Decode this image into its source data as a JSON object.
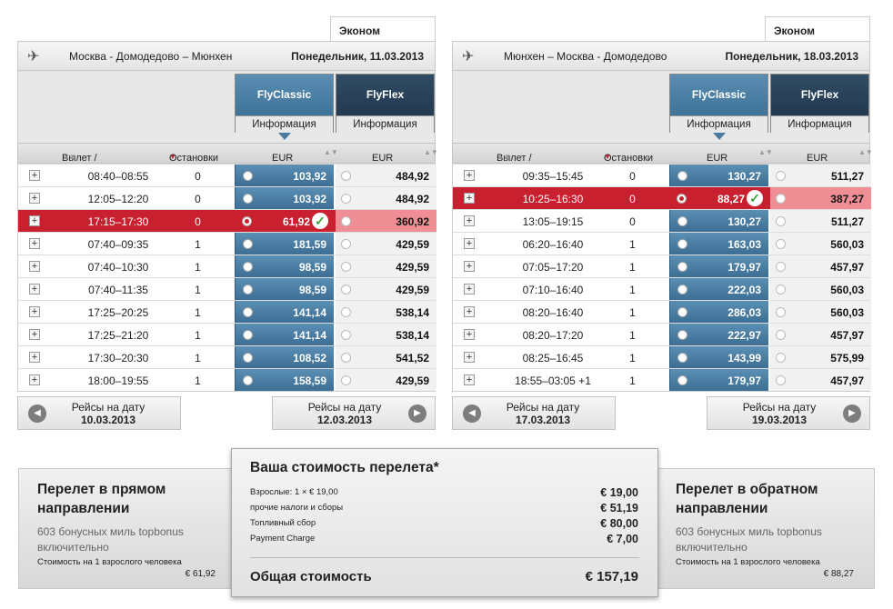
{
  "outbound": {
    "tab": "Эконом",
    "route": "Москва - Домодедово – Мюнхен",
    "date": "Понедельник, 11.03.2013",
    "fare_classic": "FlyClassic",
    "fare_flex": "FlyFlex",
    "info": "Информация",
    "col_time": "Вылет / прибытие",
    "col_stops": "Остановки",
    "col_eur": "EUR",
    "flights": [
      {
        "time": "08:40–08:55",
        "stops": "0",
        "classic": "103,92",
        "flex": "484,92"
      },
      {
        "time": "12:05–12:20",
        "stops": "0",
        "classic": "103,92",
        "flex": "484,92"
      },
      {
        "time": "17:15–17:30",
        "stops": "0",
        "classic": "61,92",
        "flex": "360,92",
        "selected": true
      },
      {
        "time": "07:40–09:35",
        "stops": "1",
        "classic": "181,59",
        "flex": "429,59"
      },
      {
        "time": "07:40–10:30",
        "stops": "1",
        "classic": "98,59",
        "flex": "429,59"
      },
      {
        "time": "07:40–11:35",
        "stops": "1",
        "classic": "98,59",
        "flex": "429,59"
      },
      {
        "time": "17:25–20:25",
        "stops": "1",
        "classic": "141,14",
        "flex": "538,14"
      },
      {
        "time": "17:25–21:20",
        "stops": "1",
        "classic": "141,14",
        "flex": "538,14"
      },
      {
        "time": "17:30–20:30",
        "stops": "1",
        "classic": "108,52",
        "flex": "541,52"
      },
      {
        "time": "18:00–19:55",
        "stops": "1",
        "classic": "158,59",
        "flex": "429,59"
      }
    ],
    "prev_label": "Рейсы на дату",
    "prev_date": "10.03.2013",
    "next_label": "Рейсы на дату",
    "next_date": "12.03.2013"
  },
  "return": {
    "tab": "Эконом",
    "route": "Мюнхен – Москва - Домодедово",
    "date": "Понедельник, 18.03.2013",
    "fare_classic": "FlyClassic",
    "fare_flex": "FlyFlex",
    "info": "Информация",
    "col_time": "Вылет / прибытие",
    "col_stops": "Остановки",
    "col_eur": "EUR",
    "flights": [
      {
        "time": "09:35–15:45",
        "stops": "0",
        "classic": "130,27",
        "flex": "511,27"
      },
      {
        "time": "10:25–16:30",
        "stops": "0",
        "classic": "88,27",
        "flex": "387,27",
        "selected": true
      },
      {
        "time": "13:05–19:15",
        "stops": "0",
        "classic": "130,27",
        "flex": "511,27"
      },
      {
        "time": "06:20–16:40",
        "stops": "1",
        "classic": "163,03",
        "flex": "560,03"
      },
      {
        "time": "07:05–17:20",
        "stops": "1",
        "classic": "179,97",
        "flex": "457,97"
      },
      {
        "time": "07:10–16:40",
        "stops": "1",
        "classic": "222,03",
        "flex": "560,03"
      },
      {
        "time": "08:20–16:40",
        "stops": "1",
        "classic": "286,03",
        "flex": "560,03"
      },
      {
        "time": "08:20–17:20",
        "stops": "1",
        "classic": "222,97",
        "flex": "457,97"
      },
      {
        "time": "08:25–16:45",
        "stops": "1",
        "classic": "143,99",
        "flex": "575,99"
      },
      {
        "time": "18:55–03:05 +1",
        "stops": "1",
        "classic": "179,97",
        "flex": "457,97"
      }
    ],
    "prev_label": "Рейсы на дату",
    "prev_date": "17.03.2013",
    "next_label": "Рейсы на дату",
    "next_date": "19.03.2013"
  },
  "summary_out": {
    "title_line1": "Перелет в прямом",
    "title_line2": "направлении",
    "miles": "603 бонусных миль topbonus включительно",
    "per_person": "Стоимость на 1 взрослого человека",
    "amount": "€ 61,92"
  },
  "summary_ret": {
    "title_line1": "Перелет в обратном",
    "title_line2": "направлении",
    "miles": "603 бонусных миль topbonus включительно",
    "per_person": "Стоимость на 1 взрослого человека",
    "amount": "€ 88,27"
  },
  "total": {
    "title": "Ваша стоимость перелета*",
    "lines": [
      {
        "label": "Взрослые: 1 × € 19,00",
        "value": "€ 19,00"
      },
      {
        "label": "прочие налоги и сборы",
        "value": "€ 51,19"
      },
      {
        "label": "Топливный сбор",
        "value": "€ 80,00"
      },
      {
        "label": "Payment Charge",
        "value": "€ 7,00"
      }
    ],
    "total_label": "Общая стоимость",
    "total_value": "€ 157,19"
  }
}
